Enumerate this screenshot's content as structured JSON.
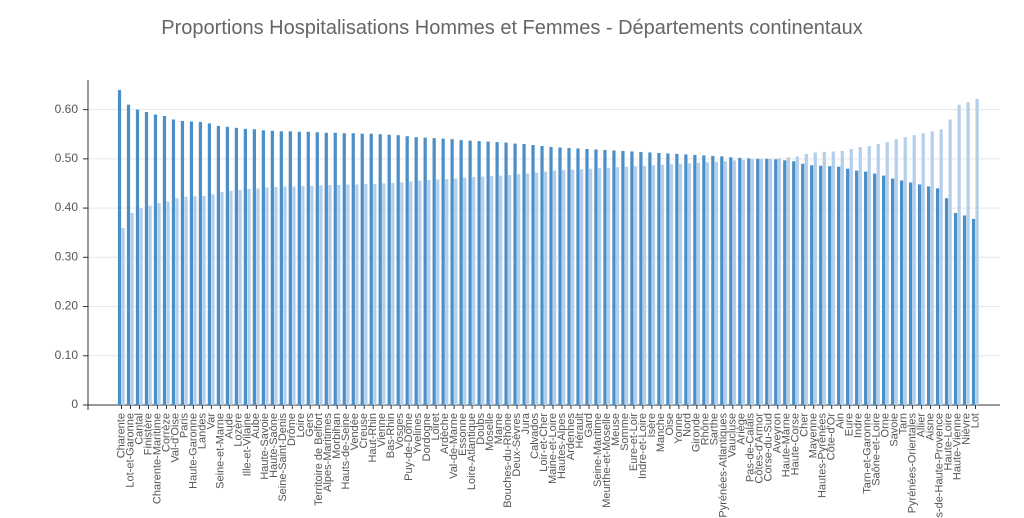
{
  "chart_data": {
    "type": "bar",
    "title": "Proportions Hospitalisations Hommes et Femmes - Départements continentaux",
    "categories": [
      "Charente",
      "Lot-et-Garonne",
      "Cantal",
      "Finistère",
      "Charente-Maritime",
      "Corrèze",
      "Val-d'Oise",
      "Paris",
      "Haute-Garonne",
      "Landes",
      "Var",
      "Seine-et-Marne",
      "Aude",
      "Lozère",
      "Ille-et-Vilaine",
      "Aube",
      "Haute-Savoie",
      "Haute-Saône",
      "Seine-Saint-Denis",
      "Drôme",
      "Loire",
      "Gers",
      "Territoire de Belfort",
      "Alpes-Maritimes",
      "Morbihan",
      "Hauts-de-Seine",
      "Vendée",
      "Creuse",
      "Haut-Rhin",
      "Vienne",
      "Bas-Rhin",
      "Vosges",
      "Puy-de-Dôme",
      "Yvelines",
      "Dordogne",
      "Loiret",
      "Ardèche",
      "Val-de-Marne",
      "Essonne",
      "Loire-Atlantique",
      "Doubs",
      "Moselle",
      "Marne",
      "Bouches-du-Rhône",
      "Deux-Sèvres",
      "Jura",
      "Calvados",
      "Loir-et-Cher",
      "Maine-et-Loire",
      "Hautes-Alpes",
      "Ardennes",
      "Hérault",
      "Gard",
      "Seine-Maritime",
      "Meurthe-et-Moselle",
      "Meuse",
      "Somme",
      "Eure-et-Loir",
      "Indre-et-Loire",
      "Isère",
      "Manche",
      "Oise",
      "Yonne",
      "Nord",
      "Gironde",
      "Rhône",
      "Sarthe",
      "Pyrénées-Atlantiques",
      "Vaucluse",
      "Ariège",
      "Pas-de-Calais",
      "Côtes-d'Armor",
      "Corse-du-Sud",
      "Aveyron",
      "Haute-Marne",
      "Haute-Corse",
      "Cher",
      "Mayenne",
      "Hautes-Pyrénées",
      "Côte-d'Or",
      "Ain",
      "Eure",
      "Indre",
      "Tarn-et-Garonne",
      "Saône-et-Loire",
      "Orne",
      "Savoie",
      "Tarn",
      "Pyrénées-Orientales",
      "Allier",
      "Aisne",
      "Alpes-de-Haute-Provence",
      "Haute-Loire",
      "Haute-Vienne",
      "Nièvre",
      "Lot"
    ],
    "series": [
      {
        "color": "#4a8fc7",
        "values": [
          0.64,
          0.61,
          0.6,
          0.595,
          0.59,
          0.587,
          0.58,
          0.577,
          0.576,
          0.575,
          0.572,
          0.567,
          0.565,
          0.563,
          0.561,
          0.56,
          0.558,
          0.557,
          0.556,
          0.556,
          0.555,
          0.555,
          0.554,
          0.553,
          0.553,
          0.552,
          0.552,
          0.551,
          0.551,
          0.55,
          0.549,
          0.548,
          0.546,
          0.544,
          0.543,
          0.542,
          0.541,
          0.54,
          0.538,
          0.537,
          0.536,
          0.535,
          0.534,
          0.533,
          0.531,
          0.53,
          0.528,
          0.526,
          0.524,
          0.523,
          0.522,
          0.521,
          0.52,
          0.519,
          0.518,
          0.517,
          0.516,
          0.515,
          0.514,
          0.513,
          0.512,
          0.511,
          0.51,
          0.509,
          0.508,
          0.507,
          0.506,
          0.505,
          0.503,
          0.502,
          0.501,
          0.5,
          0.5,
          0.499,
          0.497,
          0.495,
          0.49,
          0.487,
          0.486,
          0.485,
          0.484,
          0.48,
          0.476,
          0.474,
          0.47,
          0.466,
          0.46,
          0.456,
          0.452,
          0.448,
          0.444,
          0.44,
          0.42,
          0.39,
          0.385,
          0.378
        ]
      },
      {
        "color": "#b4cfec",
        "values": [
          0.36,
          0.39,
          0.4,
          0.405,
          0.41,
          0.413,
          0.42,
          0.423,
          0.424,
          0.425,
          0.428,
          0.433,
          0.435,
          0.437,
          0.439,
          0.44,
          0.442,
          0.443,
          0.444,
          0.444,
          0.445,
          0.445,
          0.446,
          0.447,
          0.447,
          0.448,
          0.448,
          0.449,
          0.449,
          0.45,
          0.451,
          0.452,
          0.454,
          0.456,
          0.457,
          0.458,
          0.459,
          0.46,
          0.462,
          0.463,
          0.464,
          0.465,
          0.466,
          0.467,
          0.469,
          0.47,
          0.472,
          0.474,
          0.476,
          0.477,
          0.478,
          0.479,
          0.48,
          0.481,
          0.482,
          0.483,
          0.484,
          0.485,
          0.486,
          0.487,
          0.488,
          0.489,
          0.49,
          0.491,
          0.492,
          0.493,
          0.494,
          0.495,
          0.497,
          0.498,
          0.499,
          0.5,
          0.5,
          0.501,
          0.503,
          0.505,
          0.51,
          0.513,
          0.514,
          0.515,
          0.516,
          0.52,
          0.524,
          0.526,
          0.53,
          0.534,
          0.54,
          0.544,
          0.548,
          0.552,
          0.556,
          0.56,
          0.58,
          0.61,
          0.615,
          0.622
        ]
      }
    ],
    "ylim": [
      0,
      0.65
    ],
    "yticks": [
      0,
      {
        "value": 0.1,
        "label": "0.10"
      },
      {
        "value": 0.2,
        "label": "0.20"
      },
      {
        "value": 0.3,
        "label": "0.30"
      },
      {
        "value": 0.4,
        "label": "0.40"
      },
      {
        "value": 0.5,
        "label": "0.50"
      },
      {
        "value": 0.6,
        "label": "0.60"
      }
    ],
    "grid": true
  }
}
